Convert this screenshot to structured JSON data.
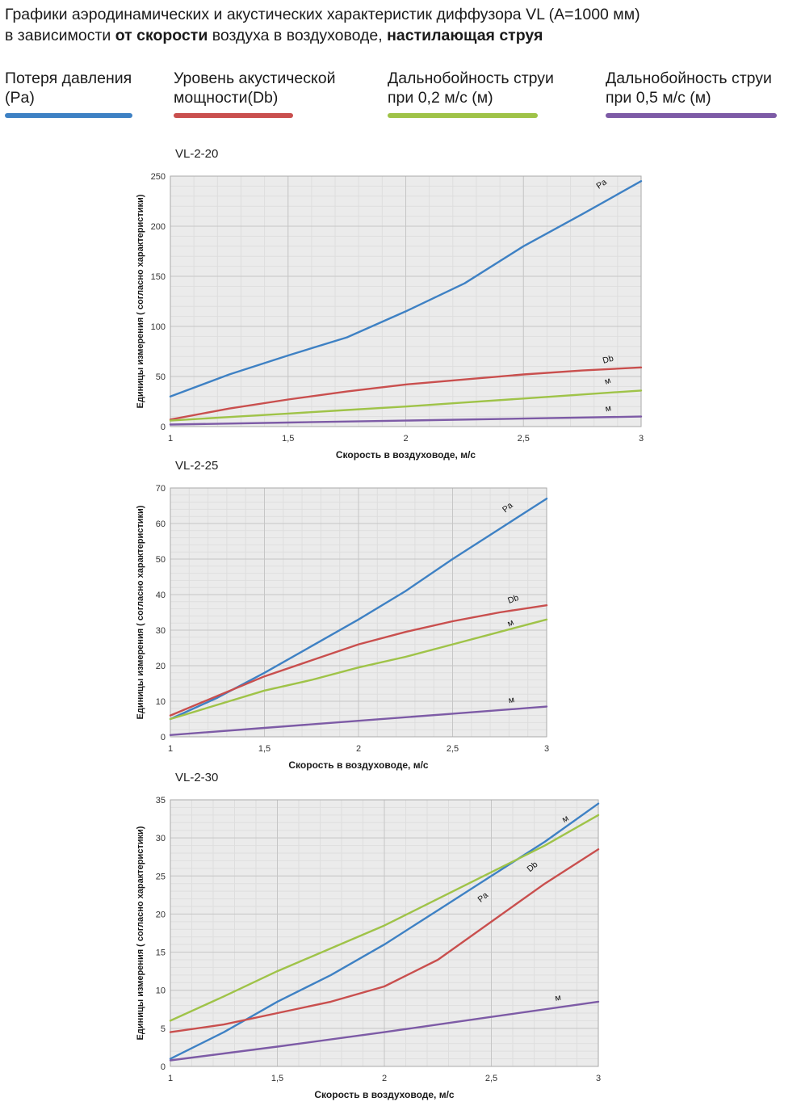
{
  "header": {
    "line1": "Графики аэродинамических и акустических характеристик  диффузора VL (А=1000 мм)",
    "line2_pre": "в зависимости ",
    "line2_bold1": "от скорости",
    "line2_mid": " воздуха в воздуховоде, ",
    "line2_bold2": "настилающая струя"
  },
  "legend": [
    {
      "label": "Потеря давления (Pa)",
      "color": "#3e81c4"
    },
    {
      "label": "Уровень акустической мощности(Db)",
      "color": "#c94f4e"
    },
    {
      "label": "Дальнобойность струи при 0,2 м/с (м)",
      "color": "#9fc348"
    },
    {
      "label": "Дальнобойность струи при 0,5 м/с (м)",
      "color": "#7d5ba6"
    }
  ],
  "theme": {
    "plot_bg": "#ebebeb",
    "grid_minor": "#dedede",
    "grid_major": "#c6c6c6",
    "plot_border": "#aaaaaa"
  },
  "chart_data": [
    {
      "type": "line",
      "title": "VL-2-20",
      "xlabel": "Скорость в воздуховоде, м/с",
      "ylabel": "Единицы измерения ( согласно характеристики)",
      "xlim": [
        1,
        3
      ],
      "ylim": [
        0,
        250
      ],
      "grid": true,
      "minor_x_step": 0.1,
      "minor_y_step": 10,
      "x_ticks": [
        {
          "v": 1,
          "label": "1"
        },
        {
          "v": 1.5,
          "label": "1,5"
        },
        {
          "v": 2,
          "label": "2"
        },
        {
          "v": 2.5,
          "label": "2,5"
        },
        {
          "v": 3,
          "label": "3"
        }
      ],
      "y_ticks": [
        {
          "v": 0,
          "label": "0"
        },
        {
          "v": 50,
          "label": "50"
        },
        {
          "v": 100,
          "label": "100"
        },
        {
          "v": 150,
          "label": "150"
        },
        {
          "v": 200,
          "label": "200"
        },
        {
          "v": 250,
          "label": "250"
        }
      ],
      "series": [
        {
          "name": "Потеря давления (Pa)",
          "end_label": "Pa",
          "color": "#3e81c4",
          "label_at": [
            2.82,
            237
          ],
          "label_rot": -35,
          "points": [
            [
              1,
              30
            ],
            [
              1.25,
              52
            ],
            [
              1.5,
              71
            ],
            [
              1.75,
              89
            ],
            [
              2,
              115
            ],
            [
              2.25,
              143
            ],
            [
              2.5,
              180
            ],
            [
              2.75,
              212
            ],
            [
              3,
              245
            ]
          ]
        },
        {
          "name": "Уровень акустической мощности(Db)",
          "end_label": "Db",
          "color": "#c94f4e",
          "label_at": [
            2.84,
            63
          ],
          "label_rot": -15,
          "points": [
            [
              1,
              7
            ],
            [
              1.25,
              18
            ],
            [
              1.5,
              27
            ],
            [
              1.75,
              35
            ],
            [
              2,
              42
            ],
            [
              2.25,
              47
            ],
            [
              2.5,
              52
            ],
            [
              2.75,
              56
            ],
            [
              3,
              59
            ]
          ]
        },
        {
          "name": "Дальнобойность струи при 0,2 м/с (м)",
          "end_label": "м",
          "color": "#9fc348",
          "label_at": [
            2.85,
            42
          ],
          "label_rot": -20,
          "points": [
            [
              1,
              6
            ],
            [
              1.25,
              9.5
            ],
            [
              1.5,
              13
            ],
            [
              1.75,
              16.5
            ],
            [
              2,
              20
            ],
            [
              2.25,
              24
            ],
            [
              2.5,
              28
            ],
            [
              2.75,
              32
            ],
            [
              3,
              36
            ]
          ]
        },
        {
          "name": "Дальнобойность струи при 0,5 м/с (м)",
          "end_label": "м",
          "color": "#7d5ba6",
          "label_at": [
            2.85,
            15
          ],
          "label_rot": -10,
          "points": [
            [
              1,
              2
            ],
            [
              1.5,
              4
            ],
            [
              2,
              6
            ],
            [
              2.5,
              8
            ],
            [
              3,
              10
            ]
          ]
        }
      ]
    },
    {
      "type": "line",
      "title": "VL-2-25",
      "xlabel": "Скорость в воздуховоде, м/с",
      "ylabel": "Единицы измерения ( согласно характеристики)",
      "xlim": [
        1,
        3
      ],
      "ylim": [
        0,
        70
      ],
      "grid": true,
      "minor_x_step": 0.1,
      "minor_y_step": 2,
      "x_ticks": [
        {
          "v": 1,
          "label": "1"
        },
        {
          "v": 1.5,
          "label": "1,5"
        },
        {
          "v": 2,
          "label": "2"
        },
        {
          "v": 2.5,
          "label": "2,5"
        },
        {
          "v": 3,
          "label": "3"
        }
      ],
      "y_ticks": [
        {
          "v": 0,
          "label": "0"
        },
        {
          "v": 10,
          "label": "10"
        },
        {
          "v": 20,
          "label": "20"
        },
        {
          "v": 30,
          "label": "30"
        },
        {
          "v": 40,
          "label": "40"
        },
        {
          "v": 50,
          "label": "50"
        },
        {
          "v": 60,
          "label": "60"
        },
        {
          "v": 70,
          "label": "70"
        }
      ],
      "series": [
        {
          "name": "Потеря давления (Pa)",
          "end_label": "Pa",
          "color": "#3e81c4",
          "label_at": [
            2.78,
            63
          ],
          "label_rot": -40,
          "points": [
            [
              1,
              5
            ],
            [
              1.25,
              11
            ],
            [
              1.5,
              18
            ],
            [
              1.75,
              25.5
            ],
            [
              2,
              33
            ],
            [
              2.25,
              41
            ],
            [
              2.5,
              50
            ],
            [
              2.75,
              58.5
            ],
            [
              3,
              67
            ]
          ]
        },
        {
          "name": "Уровень акустической мощности(Db)",
          "end_label": "Db",
          "color": "#c94f4e",
          "label_at": [
            2.8,
            37.5
          ],
          "label_rot": -20,
          "points": [
            [
              1,
              6
            ],
            [
              1.25,
              11.5
            ],
            [
              1.5,
              17
            ],
            [
              1.75,
              21.5
            ],
            [
              2,
              26
            ],
            [
              2.25,
              29.5
            ],
            [
              2.5,
              32.5
            ],
            [
              2.75,
              35
            ],
            [
              3,
              37
            ]
          ]
        },
        {
          "name": "Дальнобойность струи при 0,2 м/с (м)",
          "end_label": "м",
          "color": "#9fc348",
          "label_at": [
            2.8,
            31
          ],
          "label_rot": -25,
          "points": [
            [
              1,
              5
            ],
            [
              1.25,
              9
            ],
            [
              1.5,
              13
            ],
            [
              1.75,
              16
            ],
            [
              2,
              19.5
            ],
            [
              2.25,
              22.5
            ],
            [
              2.5,
              26
            ],
            [
              2.75,
              29.5
            ],
            [
              3,
              33
            ]
          ]
        },
        {
          "name": "Дальнобойность струи при 0,5 м/с (м)",
          "end_label": "м",
          "color": "#7d5ba6",
          "label_at": [
            2.8,
            9.5
          ],
          "label_rot": -10,
          "points": [
            [
              1,
              0.5
            ],
            [
              1.5,
              2.5
            ],
            [
              2,
              4.5
            ],
            [
              2.5,
              6.5
            ],
            [
              3,
              8.5
            ]
          ]
        }
      ]
    },
    {
      "type": "line",
      "title": "VL-2-30",
      "xlabel": "Скорость в воздуховоде, м/с",
      "ylabel": "Единицы измерения ( согласно характеристики)",
      "xlim": [
        1,
        3
      ],
      "ylim": [
        0,
        35
      ],
      "grid": true,
      "minor_x_step": 0.1,
      "minor_y_step": 1,
      "x_ticks": [
        {
          "v": 1,
          "label": "1"
        },
        {
          "v": 1.5,
          "label": "1,5"
        },
        {
          "v": 2,
          "label": "2"
        },
        {
          "v": 2.5,
          "label": "2,5"
        },
        {
          "v": 3,
          "label": "3"
        }
      ],
      "y_ticks": [
        {
          "v": 0,
          "label": "0"
        },
        {
          "v": 5,
          "label": "5"
        },
        {
          "v": 10,
          "label": "10"
        },
        {
          "v": 15,
          "label": "15"
        },
        {
          "v": 20,
          "label": "20"
        },
        {
          "v": 25,
          "label": "25"
        },
        {
          "v": 30,
          "label": "30"
        },
        {
          "v": 35,
          "label": "35"
        }
      ],
      "series": [
        {
          "name": "Потеря давления (Pa)",
          "end_label": "Pa",
          "color": "#3e81c4",
          "label_at": [
            2.45,
            21.5
          ],
          "label_rot": -40,
          "points": [
            [
              1,
              1
            ],
            [
              1.25,
              4.5
            ],
            [
              1.5,
              8.5
            ],
            [
              1.75,
              12
            ],
            [
              2,
              16
            ],
            [
              2.25,
              20.5
            ],
            [
              2.5,
              25
            ],
            [
              2.75,
              29.5
            ],
            [
              3,
              34.5
            ]
          ]
        },
        {
          "name": "Уровень акустической мощности(Db)",
          "end_label": "Db",
          "color": "#c94f4e",
          "label_at": [
            2.68,
            25.5
          ],
          "label_rot": -40,
          "points": [
            [
              1,
              4.5
            ],
            [
              1.25,
              5.5
            ],
            [
              1.5,
              7
            ],
            [
              1.75,
              8.5
            ],
            [
              2,
              10.5
            ],
            [
              2.25,
              14
            ],
            [
              2.5,
              19
            ],
            [
              2.75,
              24
            ],
            [
              3,
              28.5
            ]
          ]
        },
        {
          "name": "Дальнобойность струи при 0,2 м/с (м)",
          "end_label": "м",
          "color": "#9fc348",
          "label_at": [
            2.84,
            32
          ],
          "label_rot": -30,
          "points": [
            [
              1,
              6
            ],
            [
              1.25,
              9.2
            ],
            [
              1.5,
              12.5
            ],
            [
              1.75,
              15.5
            ],
            [
              2,
              18.5
            ],
            [
              2.25,
              22
            ],
            [
              2.5,
              25.5
            ],
            [
              2.75,
              29
            ],
            [
              3,
              33
            ]
          ]
        },
        {
          "name": "Дальнобойность струи при 0,5 м/с (м)",
          "end_label": "м",
          "color": "#7d5ba6",
          "label_at": [
            2.8,
            8.6
          ],
          "label_rot": -10,
          "points": [
            [
              1,
              0.8
            ],
            [
              1.5,
              2.6
            ],
            [
              2,
              4.5
            ],
            [
              2.5,
              6.5
            ],
            [
              3,
              8.5
            ]
          ]
        }
      ]
    }
  ]
}
